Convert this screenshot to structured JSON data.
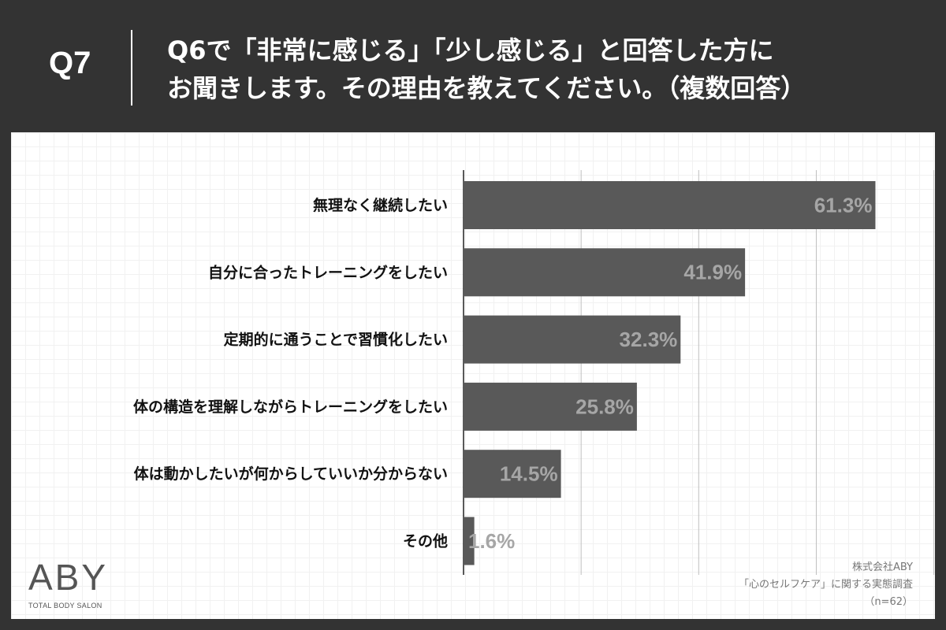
{
  "header": {
    "question_number": "Q7",
    "title_line1": "Q6で「非常に感じる」「少し感じる」と回答した方に",
    "title_line2": "お聞きします。その理由を教えてください。（複数回答）"
  },
  "logo": {
    "mark": "ABY",
    "subtitle": "TOTAL BODY SALON"
  },
  "source": {
    "company": "株式会社ABY",
    "survey": "「心のセルフケア」に関する実態調査",
    "sample": "（n=62）"
  },
  "colors": {
    "header_bg": "#333333",
    "bar": "#595959",
    "bar_label": "#a6a6a6",
    "category_text": "#111111",
    "gridline": "#bfbfbf"
  },
  "chart_data": {
    "type": "bar",
    "orientation": "horizontal",
    "categories": [
      "無理なく継続したい",
      "自分に合ったトレーニングをしたい",
      "定期的に通うことで習慣化したい",
      "体の構造を理解しながらトレーニングをしたい",
      "体は動かしたいが何からしていいか分からない",
      "その他"
    ],
    "values": [
      61.3,
      41.9,
      32.3,
      25.8,
      14.5,
      1.6
    ],
    "value_labels": [
      "61.3%",
      "41.9%",
      "32.3%",
      "25.8%",
      "14.5%",
      "1.6%"
    ],
    "title": "",
    "xlabel": "",
    "ylabel": "",
    "xlim": [
      0,
      70
    ],
    "grid": "vertical",
    "legend": "none"
  }
}
